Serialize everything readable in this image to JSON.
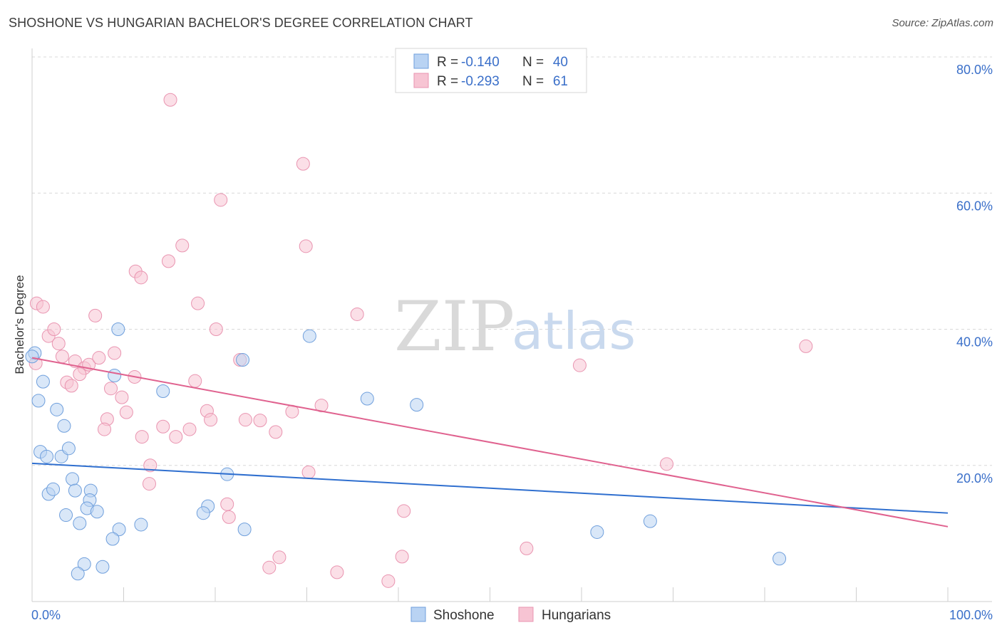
{
  "title": "SHOSHONE VS HUNGARIAN BACHELOR'S DEGREE CORRELATION CHART",
  "source": "Source: ZipAtlas.com",
  "watermark": {
    "zip": "ZIP",
    "atlas": "atlas"
  },
  "colors": {
    "shoshone_fill": "#b9d3f3",
    "shoshone_stroke": "#6f9fdc",
    "shoshone_line": "#2f6fcf",
    "hungarian_fill": "#f7c4d3",
    "hungarian_stroke": "#e994b0",
    "hungarian_line": "#e0628f",
    "axis_label": "#3a6fc9",
    "grid": "#d8d8d8"
  },
  "legend": {
    "rows": [
      {
        "r_label": "R =",
        "r_value": "-0.140",
        "n_label": "N =",
        "n_value": "40"
      },
      {
        "r_label": "R =",
        "r_value": "-0.293",
        "n_label": "N =",
        "n_value": "61"
      }
    ]
  },
  "chart_data": {
    "type": "scatter",
    "title": "SHOSHONE VS HUNGARIAN BACHELOR'S DEGREE CORRELATION CHART",
    "xlabel": "",
    "ylabel": "Bachelor's Degree",
    "xlim": [
      0,
      100
    ],
    "ylim": [
      0,
      80
    ],
    "x_tick_labels": [
      "0.0%",
      "100.0%"
    ],
    "y_ticks": [
      20,
      40,
      60,
      80
    ],
    "y_tick_labels": [
      "20.0%",
      "40.0%",
      "60.0%",
      "80.0%"
    ],
    "grid": true,
    "series": [
      {
        "name": "Shoshone",
        "r": -0.14,
        "n": 40,
        "trend": {
          "x": [
            0,
            100
          ],
          "y": [
            20.3,
            13.0
          ]
        },
        "points": [
          [
            0.3,
            36.5
          ],
          [
            1.2,
            32.3
          ],
          [
            0.7,
            29.5
          ],
          [
            2.7,
            28.2
          ],
          [
            3.5,
            25.8
          ],
          [
            0.9,
            22.0
          ],
          [
            1.6,
            21.3
          ],
          [
            3.2,
            21.3
          ],
          [
            4.0,
            22.5
          ],
          [
            4.4,
            18.0
          ],
          [
            1.8,
            15.8
          ],
          [
            2.3,
            16.5
          ],
          [
            4.7,
            16.3
          ],
          [
            6.4,
            16.3
          ],
          [
            6.3,
            14.9
          ],
          [
            6.0,
            13.7
          ],
          [
            3.7,
            12.7
          ],
          [
            7.1,
            13.2
          ],
          [
            5.2,
            11.5
          ],
          [
            9.5,
            10.6
          ],
          [
            11.9,
            11.3
          ],
          [
            8.8,
            9.2
          ],
          [
            5.7,
            5.5
          ],
          [
            7.7,
            5.1
          ],
          [
            5.0,
            4.1
          ],
          [
            9.0,
            33.2
          ],
          [
            9.4,
            40.0
          ],
          [
            14.3,
            30.9
          ],
          [
            23.0,
            35.5
          ],
          [
            21.3,
            18.7
          ],
          [
            19.2,
            14.0
          ],
          [
            18.7,
            13.0
          ],
          [
            23.2,
            10.6
          ],
          [
            30.3,
            39.0
          ],
          [
            36.6,
            29.8
          ],
          [
            42.0,
            28.9
          ],
          [
            61.7,
            10.2
          ],
          [
            67.5,
            11.8
          ],
          [
            81.6,
            6.3
          ],
          [
            0.0,
            36.0
          ]
        ]
      },
      {
        "name": "Hungarians",
        "r": -0.293,
        "n": 61,
        "trend": {
          "x": [
            0,
            100
          ],
          "y": [
            35.8,
            11.0
          ]
        },
        "points": [
          [
            0.5,
            43.8
          ],
          [
            1.2,
            43.3
          ],
          [
            1.8,
            39.0
          ],
          [
            2.4,
            40.0
          ],
          [
            2.9,
            37.9
          ],
          [
            0.4,
            35.0
          ],
          [
            3.3,
            36.0
          ],
          [
            4.7,
            35.3
          ],
          [
            5.7,
            34.3
          ],
          [
            6.2,
            34.8
          ],
          [
            7.3,
            35.8
          ],
          [
            5.2,
            33.4
          ],
          [
            3.8,
            32.2
          ],
          [
            4.3,
            31.7
          ],
          [
            6.9,
            42.0
          ],
          [
            9.0,
            36.5
          ],
          [
            11.3,
            48.5
          ],
          [
            11.9,
            47.6
          ],
          [
            14.9,
            50.0
          ],
          [
            16.4,
            52.3
          ],
          [
            15.1,
            73.7
          ],
          [
            20.6,
            59.0
          ],
          [
            18.1,
            43.8
          ],
          [
            20.1,
            40.0
          ],
          [
            22.7,
            35.5
          ],
          [
            8.6,
            31.3
          ],
          [
            9.8,
            30.0
          ],
          [
            11.2,
            33.0
          ],
          [
            17.8,
            32.4
          ],
          [
            10.3,
            27.8
          ],
          [
            8.2,
            26.8
          ],
          [
            7.9,
            25.3
          ],
          [
            14.3,
            25.7
          ],
          [
            12.0,
            24.2
          ],
          [
            15.7,
            24.2
          ],
          [
            17.2,
            25.3
          ],
          [
            19.1,
            28.0
          ],
          [
            19.5,
            26.7
          ],
          [
            23.3,
            26.7
          ],
          [
            24.9,
            26.6
          ],
          [
            26.6,
            24.9
          ],
          [
            28.4,
            27.9
          ],
          [
            31.6,
            28.8
          ],
          [
            29.6,
            64.3
          ],
          [
            29.9,
            52.2
          ],
          [
            35.5,
            42.2
          ],
          [
            12.9,
            20.0
          ],
          [
            12.8,
            17.3
          ],
          [
            21.3,
            14.3
          ],
          [
            21.5,
            12.4
          ],
          [
            30.2,
            19.0
          ],
          [
            27.0,
            6.5
          ],
          [
            25.9,
            5.0
          ],
          [
            33.3,
            4.3
          ],
          [
            38.9,
            3.0
          ],
          [
            40.6,
            13.3
          ],
          [
            40.4,
            6.6
          ],
          [
            54.0,
            7.8
          ],
          [
            59.8,
            34.7
          ],
          [
            69.3,
            20.2
          ],
          [
            84.5,
            37.5
          ]
        ]
      }
    ]
  }
}
